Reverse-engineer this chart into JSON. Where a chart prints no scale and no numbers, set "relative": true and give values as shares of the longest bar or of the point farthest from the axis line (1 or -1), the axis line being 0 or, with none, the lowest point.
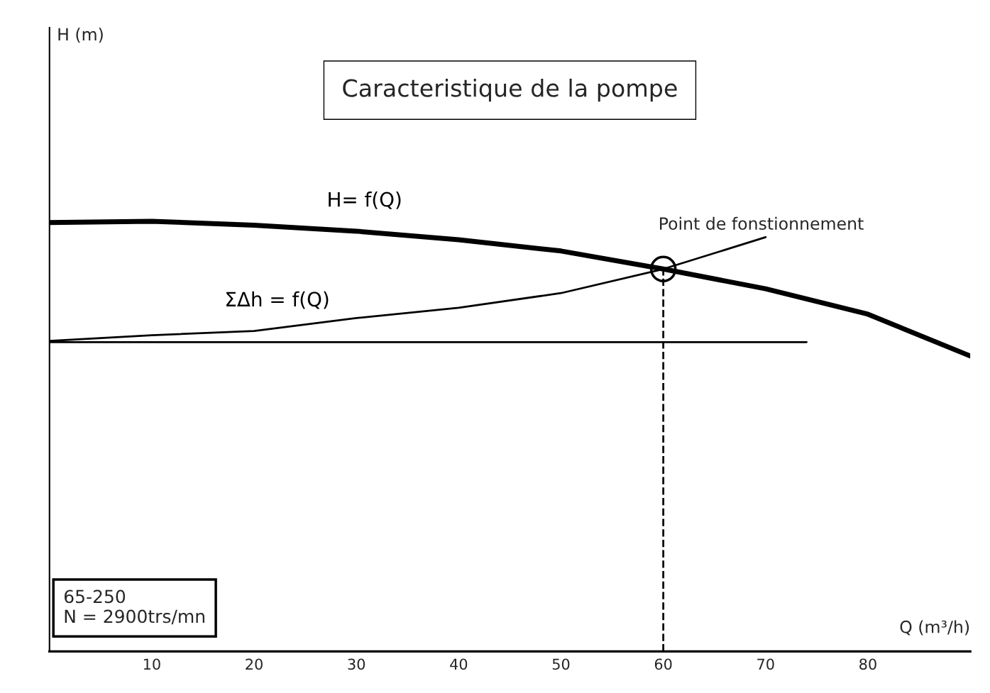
{
  "chart_data": {
    "type": "line",
    "title": "Caracteristique de la pompe",
    "xlabel": "Q (m³/h)",
    "relative": true,
    "xlim": [
      0,
      90
    ],
    "xticks": [
      10,
      20,
      30,
      40,
      50,
      60,
      70,
      80
    ],
    "grid": false,
    "legend": false,
    "series": [
      {
        "name": "H= f(Q)",
        "color": "#000000",
        "x": [
          0,
          10,
          20,
          30,
          40,
          50,
          60,
          70,
          80,
          90
        ],
        "values": [
          0.997,
          1.0,
          0.991,
          0.977,
          0.957,
          0.931,
          0.889,
          0.843,
          0.784,
          0.687
        ]
      },
      {
        "name": "ΣΔh = f(Q)",
        "color": "#000000",
        "x": [
          0,
          10,
          20,
          30,
          40,
          50,
          60,
          70
        ],
        "values": [
          0.722,
          0.735,
          0.745,
          0.775,
          0.799,
          0.833,
          0.889,
          0.963
        ]
      },
      {
        "color": "#000000",
        "x": [
          0,
          74
        ],
        "values": [
          0.719,
          0.719
        ]
      },
      {
        "color": "#000000",
        "line_style": "dashed",
        "x": [
          60,
          60
        ],
        "values": [
          0,
          0.889
        ]
      },
      {
        "type": "scatter",
        "color": "#000000",
        "marker": "circle",
        "x": [
          60
        ],
        "values": [
          0.889
        ]
      }
    ],
    "annotations": [
      "H (m)",
      {
        "text": "Point de fonstionnement",
        "x": 60,
        "y": 0.889
      },
      "65-250\nN = 2900trs/mn"
    ]
  }
}
